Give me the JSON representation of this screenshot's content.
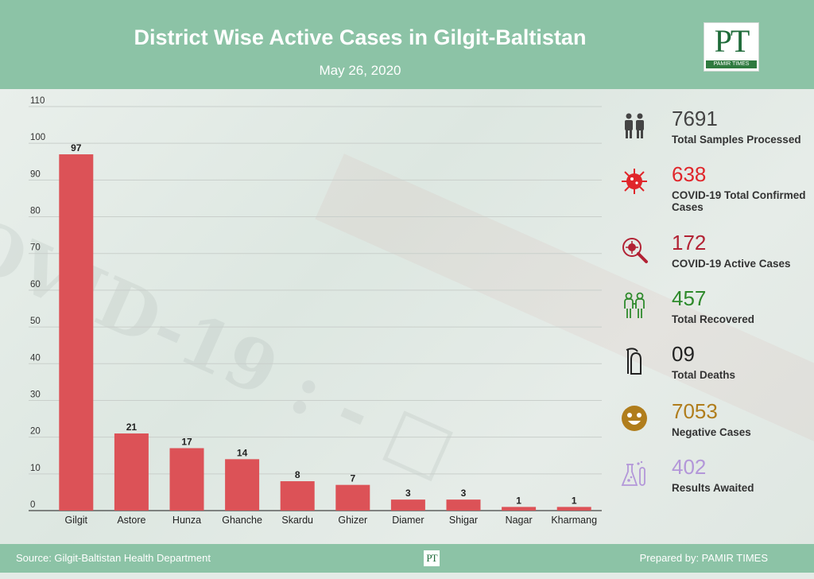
{
  "header": {
    "title": "District Wise Active Cases in Gilgit-Baltistan",
    "date": "May 26, 2020",
    "logo_letters": "PT",
    "logo_caption": "PAMIR TIMES"
  },
  "colors": {
    "header_bg": "#8cc3a6",
    "bar": "#dc5257",
    "recovered": "#2f8a2c",
    "confirmed": "#e0262b",
    "active": "#b22234",
    "negative": "#b07d1c",
    "awaited": "#b397d9"
  },
  "chart_data": {
    "type": "bar",
    "title": "District Wise Active Cases in Gilgit-Baltistan",
    "subtitle": "May 26, 2020",
    "categories": [
      "Gilgit",
      "Astore",
      "Hunza",
      "Ghanche",
      "Skardu",
      "Ghizer",
      "Diamer",
      "Shigar",
      "Nagar",
      "Kharmang"
    ],
    "values": [
      97,
      21,
      17,
      14,
      8,
      7,
      3,
      3,
      1,
      1
    ],
    "ylim": [
      0,
      110
    ],
    "yticks": [
      0,
      10,
      20,
      30,
      40,
      50,
      60,
      70,
      80,
      90,
      100,
      110
    ],
    "grid": true,
    "data_labels": true
  },
  "stats": [
    {
      "value": "7691",
      "label": "Total Samples Processed",
      "icon": "people-icon",
      "color": "#444444"
    },
    {
      "value": "638",
      "label": "COVID-19 Total Confirmed Cases",
      "icon": "virus-icon",
      "color": "#e0262b"
    },
    {
      "value": "172",
      "label": "COVID-19 Active Cases",
      "icon": "virus-magnifier-icon",
      "color": "#b22234"
    },
    {
      "value": "457",
      "label": "Total Recovered",
      "icon": "recovered-people-icon",
      "color": "#2f8a2c"
    },
    {
      "value": "09",
      "label": "Total Deaths",
      "icon": "grim-reaper-icon",
      "color": "#222222"
    },
    {
      "value": "7053",
      "label": "Negative Cases",
      "icon": "smiley-icon",
      "color": "#b07d1c"
    },
    {
      "value": "402",
      "label": "Results Awaited",
      "icon": "lab-flask-icon",
      "color": "#b397d9"
    }
  ],
  "footer": {
    "source": "Source: Gilgit-Baltistan Health Department",
    "prepared": "Prepared by: PAMIR TIMES",
    "mini_logo": "PT"
  }
}
